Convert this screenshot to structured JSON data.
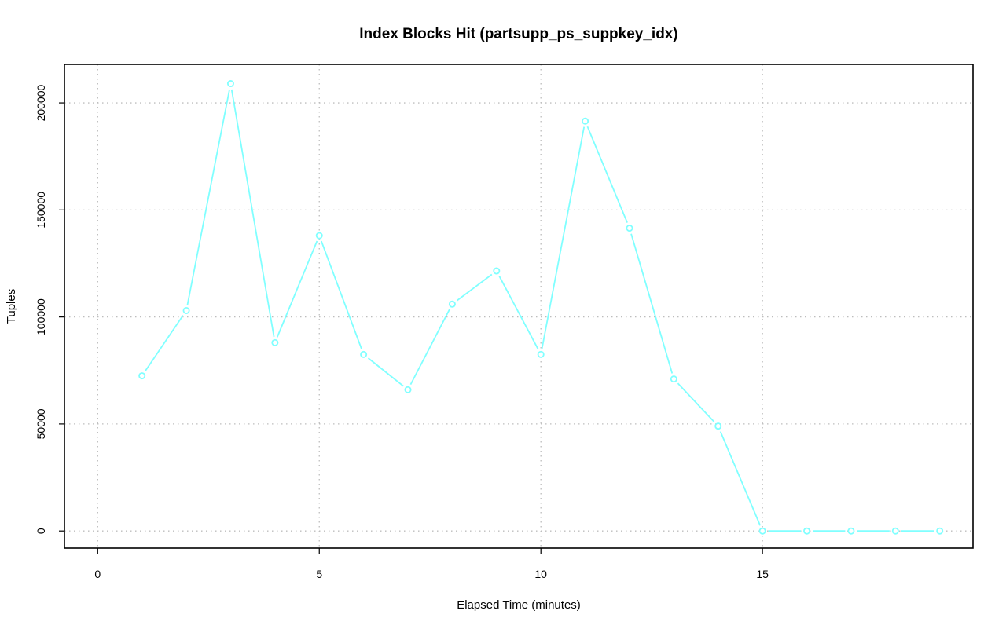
{
  "chart_data": {
    "type": "line",
    "title": "Index Blocks Hit (partsupp_ps_suppkey_idx)",
    "xlabel": "Elapsed Time (minutes)",
    "ylabel": "Tuples",
    "xlim": [
      -0.75,
      19.75
    ],
    "ylim": [
      -8000,
      218000
    ],
    "x_ticks": [
      0,
      5,
      10,
      15
    ],
    "y_ticks": [
      0,
      50000,
      100000,
      150000,
      200000
    ],
    "grid": true,
    "legend": "none",
    "series_color": "#80ffff",
    "x": [
      1,
      2,
      3,
      4,
      5,
      6,
      7,
      8,
      9,
      10,
      11,
      12,
      13,
      14,
      15,
      16,
      17,
      18,
      19
    ],
    "series": [
      {
        "values": [
          72500,
          103000,
          209000,
          88000,
          138000,
          82500,
          66000,
          106000,
          121500,
          82500,
          191500,
          141500,
          71000,
          49000,
          0,
          0,
          0,
          0,
          0
        ]
      }
    ]
  }
}
